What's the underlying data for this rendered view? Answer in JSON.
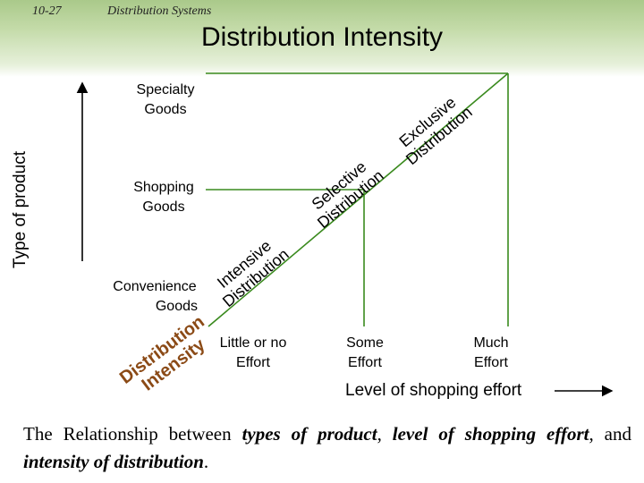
{
  "header": {
    "slide_number": "10-27",
    "section_title": "Distribution Systems",
    "title": "Distribution Intensity"
  },
  "y_axis": {
    "title": "Type of product",
    "categories": [
      {
        "line1": "Specialty",
        "line2": "Goods"
      },
      {
        "line1": "Shopping",
        "line2": "Goods"
      },
      {
        "line1": "Convenience",
        "line2": "Goods"
      }
    ]
  },
  "x_axis": {
    "title": "Level of shopping effort",
    "categories": [
      {
        "line1": "Little or no",
        "line2": "Effort"
      },
      {
        "line1": "Some",
        "line2": "Effort"
      },
      {
        "line1": "Much",
        "line2": "Effort"
      }
    ]
  },
  "diagonal_labels": [
    {
      "line1": "Exclusive",
      "line2": "Distribution"
    },
    {
      "line1": "Selective",
      "line2": "Distribution"
    },
    {
      "line1": "Intensive",
      "line2": "Distribution"
    }
  ],
  "origin_label": {
    "line1": "Distribution",
    "line2": "Intensity"
  },
  "caption": {
    "t1": "The Relationship between ",
    "e1": "types of product",
    "t2": ", ",
    "e2": "level of shopping effort",
    "t3": ", and ",
    "e3": "intensity of distribution",
    "t4": "."
  },
  "colors": {
    "line": "#3a8a1e",
    "header_top": "#aac98a",
    "header_bottom": "#e6f0da"
  }
}
